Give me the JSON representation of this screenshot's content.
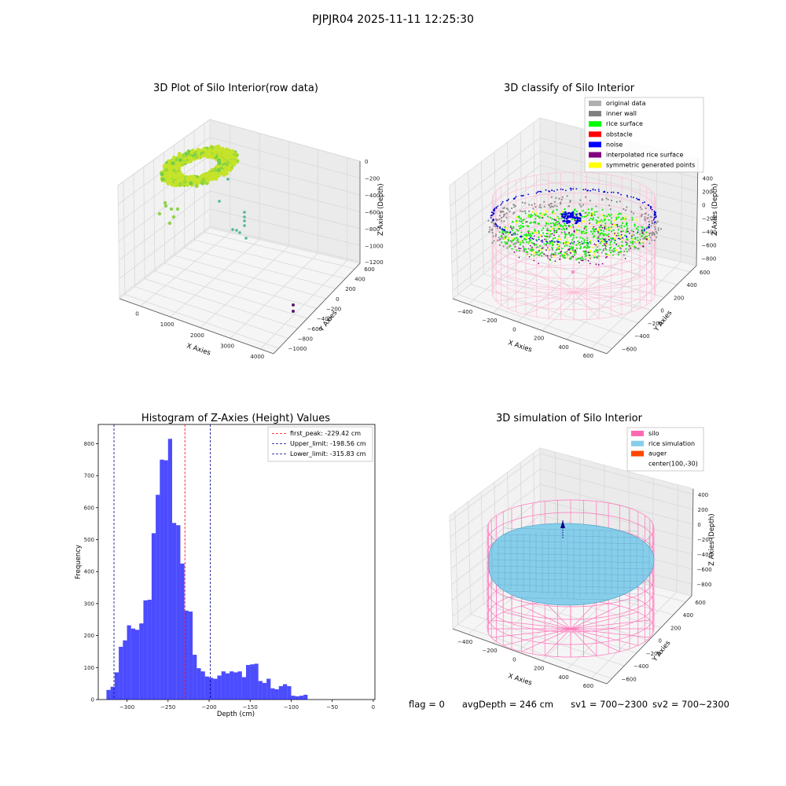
{
  "suptitle": "PJPJR04 2025-11-11 12:25:30",
  "panels": {
    "raw": {
      "title": "3D Plot of Silo Interior(row data)",
      "xlabel": "X Axies",
      "ylabel": "Y Axies",
      "zlabel": "Z Axies (Depth)",
      "xticks": [
        "0",
        "1000",
        "2000",
        "3000",
        "4000"
      ],
      "yticks": [
        "600",
        "400",
        "200",
        "0",
        "−200",
        "−400",
        "−600",
        "−800",
        "−1000"
      ],
      "zticks": [
        "0",
        "−200",
        "−400",
        "−600",
        "−800",
        "−1000",
        "−1200"
      ]
    },
    "classify": {
      "title": "3D classify of Silo Interior",
      "xlabel": "X Axies",
      "ylabel": "Y Axies",
      "zlabel": "Z Axies (Depth)",
      "xticks": [
        "−400",
        "−200",
        "0",
        "200",
        "400",
        "600"
      ],
      "yticks": [
        "600",
        "400",
        "200",
        "0",
        "−200",
        "−400",
        "−600"
      ],
      "zticks": [
        "400",
        "200",
        "0",
        "−200",
        "−400",
        "−600",
        "−800"
      ],
      "legend": [
        {
          "label": "original data",
          "color": "#b0b0b0"
        },
        {
          "label": "inner wall",
          "color": "#808080"
        },
        {
          "label": "rice surface",
          "color": "#00ff00"
        },
        {
          "label": "obstacle",
          "color": "#ff0000"
        },
        {
          "label": "noise",
          "color": "#0000ff"
        },
        {
          "label": "interpolated rice surface",
          "color": "#800080"
        },
        {
          "label": "symmetric generated points",
          "color": "#ffff00"
        }
      ]
    },
    "simulation": {
      "title": "3D simulation of Silo Interior",
      "xlabel": "X Axies",
      "ylabel": "Y Axies",
      "zlabel": "Z Axies (Depth)",
      "xticks": [
        "−400",
        "−200",
        "0",
        "200",
        "400",
        "600"
      ],
      "yticks": [
        "600",
        "400",
        "200",
        "0",
        "−200",
        "−400",
        "−600"
      ],
      "zticks": [
        "400",
        "200",
        "0",
        "−200",
        "−400",
        "−600",
        "−800"
      ],
      "legend": [
        {
          "label": "silo",
          "color": "#ff69b4"
        },
        {
          "label": "rice simulation",
          "color": "#87ceeb"
        },
        {
          "label": "auger",
          "color": "#ff4500"
        },
        {
          "label": "center(100,-30)",
          "color": ""
        }
      ]
    }
  },
  "chart_data": [
    {
      "type": "bar",
      "title": "Histogram of Z-Axies (Height) Values",
      "xlabel": "Depth (cm)",
      "ylabel": "Frequency",
      "xlim": [
        -335,
        2
      ],
      "ylim": [
        0,
        860
      ],
      "xticks": [
        -300,
        -250,
        -200,
        -150,
        -100,
        -50,
        0
      ],
      "yticks": [
        0,
        100,
        200,
        300,
        400,
        500,
        600,
        700,
        800
      ],
      "bin_start": -325,
      "bin_width": 5,
      "bar_color": "#0000ff",
      "values": [
        30,
        40,
        85,
        165,
        185,
        232,
        222,
        218,
        238,
        310,
        312,
        520,
        640,
        750,
        748,
        815,
        552,
        545,
        425,
        278,
        275,
        140,
        98,
        88,
        72,
        68,
        65,
        75,
        88,
        82,
        88,
        85,
        88,
        70,
        108,
        110,
        112,
        58,
        52,
        65,
        35,
        32,
        42,
        48,
        42,
        12,
        10,
        12,
        15
      ],
      "lines": [
        {
          "label": "first_peak: -229.42 cm",
          "x": -229.42,
          "color": "#ff0000"
        },
        {
          "label": "Upper_limit: -198.56 cm",
          "x": -198.56,
          "color": "#00008b"
        },
        {
          "label": "Lower_limit: -315.83 cm",
          "x": -315.83,
          "color": "#00008b"
        }
      ],
      "legend_position": "upper right"
    }
  ],
  "status": {
    "flag": "flag = 0",
    "avg_depth": "avgDepth = 246 cm",
    "sv1": "sv1 = 700~2300",
    "sv2": "sv2 = 700~2300"
  }
}
